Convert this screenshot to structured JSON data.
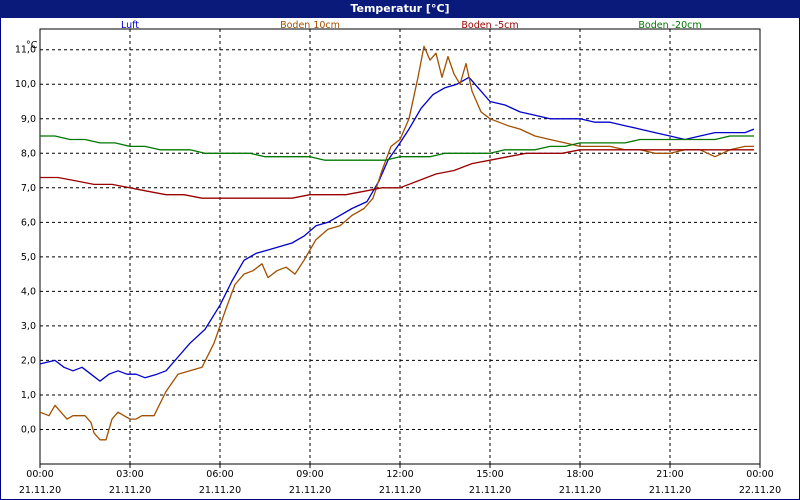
{
  "window": {
    "title": "Temperatur [°C]"
  },
  "colors": {
    "titlebar": "#0a1a7a",
    "grid": "#000000"
  },
  "chart_data": {
    "type": "line",
    "title": "Temperatur [°C]",
    "ylabel": "°C",
    "ylim": [
      -1.0,
      11.6
    ],
    "xlim": [
      0,
      24
    ],
    "grid": true,
    "legend": "top",
    "yticks": [
      0,
      1,
      2,
      3,
      4,
      5,
      6,
      7,
      8,
      9,
      10,
      11
    ],
    "yticklabels": [
      "0,0",
      "1,0",
      "2,0",
      "3,0",
      "4,0",
      "5,0",
      "6,0",
      "7,0",
      "8,0",
      "9,0",
      "10,0",
      "11,0"
    ],
    "xticks": [
      0,
      3,
      6,
      9,
      12,
      15,
      18,
      21,
      24
    ],
    "xticklabels_time": [
      "00:00",
      "03:00",
      "06:00",
      "09:00",
      "12:00",
      "15:00",
      "18:00",
      "21:00",
      "00:00"
    ],
    "xticklabels_date": [
      "21.11.20",
      "21.11.20",
      "21.11.20",
      "21.11.20",
      "21.11.20",
      "21.11.20",
      "21.11.20",
      "21.11.20",
      "22.11.20"
    ],
    "series": [
      {
        "name": "Luft",
        "color": "#0000cc",
        "points": [
          [
            0,
            1.9
          ],
          [
            0.5,
            2.0
          ],
          [
            0.8,
            1.8
          ],
          [
            1.1,
            1.7
          ],
          [
            1.4,
            1.8
          ],
          [
            1.7,
            1.6
          ],
          [
            2.0,
            1.4
          ],
          [
            2.3,
            1.6
          ],
          [
            2.6,
            1.7
          ],
          [
            2.9,
            1.6
          ],
          [
            3.2,
            1.6
          ],
          [
            3.5,
            1.5
          ],
          [
            3.9,
            1.6
          ],
          [
            4.2,
            1.7
          ],
          [
            4.6,
            2.1
          ],
          [
            5.0,
            2.5
          ],
          [
            5.5,
            2.9
          ],
          [
            6.0,
            3.6
          ],
          [
            6.4,
            4.3
          ],
          [
            6.8,
            4.9
          ],
          [
            7.2,
            5.1
          ],
          [
            7.6,
            5.2
          ],
          [
            8.0,
            5.3
          ],
          [
            8.4,
            5.4
          ],
          [
            8.8,
            5.6
          ],
          [
            9.2,
            5.9
          ],
          [
            9.6,
            6.0
          ],
          [
            10.0,
            6.2
          ],
          [
            10.4,
            6.4
          ],
          [
            10.9,
            6.6
          ],
          [
            11.3,
            7.2
          ],
          [
            11.6,
            7.8
          ],
          [
            12.0,
            8.3
          ],
          [
            12.3,
            8.7
          ],
          [
            12.7,
            9.3
          ],
          [
            13.1,
            9.7
          ],
          [
            13.5,
            9.9
          ],
          [
            13.9,
            10.0
          ],
          [
            14.3,
            10.2
          ],
          [
            14.6,
            9.9
          ],
          [
            15.0,
            9.5
          ],
          [
            15.5,
            9.4
          ],
          [
            16.0,
            9.2
          ],
          [
            16.5,
            9.1
          ],
          [
            17.0,
            9.0
          ],
          [
            17.5,
            9.0
          ],
          [
            18.0,
            9.0
          ],
          [
            18.5,
            8.9
          ],
          [
            19.0,
            8.9
          ],
          [
            19.5,
            8.8
          ],
          [
            20.0,
            8.7
          ],
          [
            20.5,
            8.6
          ],
          [
            21.0,
            8.5
          ],
          [
            21.5,
            8.4
          ],
          [
            22.0,
            8.5
          ],
          [
            22.5,
            8.6
          ],
          [
            23.0,
            8.6
          ],
          [
            23.5,
            8.6
          ],
          [
            23.8,
            8.7
          ]
        ]
      },
      {
        "name": "Boden 10cm",
        "color": "#a05000",
        "points": [
          [
            0,
            0.5
          ],
          [
            0.3,
            0.4
          ],
          [
            0.5,
            0.7
          ],
          [
            0.7,
            0.5
          ],
          [
            0.9,
            0.3
          ],
          [
            1.1,
            0.4
          ],
          [
            1.5,
            0.4
          ],
          [
            1.7,
            0.2
          ],
          [
            1.8,
            -0.1
          ],
          [
            2.0,
            -0.3
          ],
          [
            2.2,
            -0.3
          ],
          [
            2.4,
            0.3
          ],
          [
            2.6,
            0.5
          ],
          [
            2.8,
            0.4
          ],
          [
            3.0,
            0.3
          ],
          [
            3.2,
            0.3
          ],
          [
            3.4,
            0.4
          ],
          [
            3.8,
            0.4
          ],
          [
            4.2,
            1.1
          ],
          [
            4.6,
            1.6
          ],
          [
            5.0,
            1.7
          ],
          [
            5.4,
            1.8
          ],
          [
            5.8,
            2.5
          ],
          [
            6.2,
            3.5
          ],
          [
            6.5,
            4.2
          ],
          [
            6.8,
            4.5
          ],
          [
            7.1,
            4.6
          ],
          [
            7.4,
            4.8
          ],
          [
            7.6,
            4.4
          ],
          [
            7.9,
            4.6
          ],
          [
            8.2,
            4.7
          ],
          [
            8.5,
            4.5
          ],
          [
            8.8,
            4.9
          ],
          [
            9.2,
            5.5
          ],
          [
            9.6,
            5.8
          ],
          [
            10.0,
            5.9
          ],
          [
            10.4,
            6.2
          ],
          [
            10.8,
            6.4
          ],
          [
            11.1,
            6.7
          ],
          [
            11.4,
            7.5
          ],
          [
            11.7,
            8.2
          ],
          [
            12.0,
            8.4
          ],
          [
            12.3,
            9.0
          ],
          [
            12.6,
            10.2
          ],
          [
            12.8,
            11.1
          ],
          [
            13.0,
            10.7
          ],
          [
            13.2,
            10.9
          ],
          [
            13.4,
            10.2
          ],
          [
            13.6,
            10.8
          ],
          [
            13.8,
            10.3
          ],
          [
            14.0,
            10.0
          ],
          [
            14.2,
            10.6
          ],
          [
            14.4,
            9.8
          ],
          [
            14.7,
            9.2
          ],
          [
            15.0,
            9.0
          ],
          [
            15.3,
            8.9
          ],
          [
            15.6,
            8.8
          ],
          [
            16.0,
            8.7
          ],
          [
            16.5,
            8.5
          ],
          [
            17.0,
            8.4
          ],
          [
            17.5,
            8.3
          ],
          [
            18.0,
            8.2
          ],
          [
            18.5,
            8.2
          ],
          [
            19.0,
            8.2
          ],
          [
            19.5,
            8.1
          ],
          [
            20.0,
            8.1
          ],
          [
            20.5,
            8.0
          ],
          [
            21.0,
            8.0
          ],
          [
            21.5,
            8.1
          ],
          [
            22.0,
            8.1
          ],
          [
            22.5,
            7.9
          ],
          [
            23.0,
            8.1
          ],
          [
            23.5,
            8.2
          ],
          [
            23.8,
            8.2
          ]
        ]
      },
      {
        "name": "Boden -5cm",
        "color": "#990000",
        "points": [
          [
            0,
            7.3
          ],
          [
            0.6,
            7.3
          ],
          [
            1.2,
            7.2
          ],
          [
            1.8,
            7.1
          ],
          [
            2.4,
            7.1
          ],
          [
            3.0,
            7.0
          ],
          [
            3.6,
            6.9
          ],
          [
            4.2,
            6.8
          ],
          [
            4.8,
            6.8
          ],
          [
            5.4,
            6.7
          ],
          [
            6.0,
            6.7
          ],
          [
            6.6,
            6.7
          ],
          [
            7.2,
            6.7
          ],
          [
            7.8,
            6.7
          ],
          [
            8.4,
            6.7
          ],
          [
            9.0,
            6.8
          ],
          [
            9.6,
            6.8
          ],
          [
            10.2,
            6.8
          ],
          [
            10.8,
            6.9
          ],
          [
            11.4,
            7.0
          ],
          [
            12.0,
            7.0
          ],
          [
            12.6,
            7.2
          ],
          [
            13.2,
            7.4
          ],
          [
            13.8,
            7.5
          ],
          [
            14.4,
            7.7
          ],
          [
            15.0,
            7.8
          ],
          [
            15.6,
            7.9
          ],
          [
            16.2,
            8.0
          ],
          [
            16.8,
            8.0
          ],
          [
            17.4,
            8.0
          ],
          [
            18.0,
            8.1
          ],
          [
            18.6,
            8.1
          ],
          [
            19.2,
            8.1
          ],
          [
            19.8,
            8.1
          ],
          [
            20.4,
            8.1
          ],
          [
            21.0,
            8.1
          ],
          [
            21.6,
            8.1
          ],
          [
            22.2,
            8.1
          ],
          [
            22.8,
            8.1
          ],
          [
            23.4,
            8.1
          ],
          [
            23.8,
            8.1
          ]
        ]
      },
      {
        "name": "Boden -20cm",
        "color": "#007700",
        "points": [
          [
            0,
            8.5
          ],
          [
            0.5,
            8.5
          ],
          [
            1.0,
            8.4
          ],
          [
            1.5,
            8.4
          ],
          [
            2.0,
            8.3
          ],
          [
            2.5,
            8.3
          ],
          [
            3.0,
            8.2
          ],
          [
            3.5,
            8.2
          ],
          [
            4.0,
            8.1
          ],
          [
            4.5,
            8.1
          ],
          [
            5.0,
            8.1
          ],
          [
            5.5,
            8.0
          ],
          [
            6.0,
            8.0
          ],
          [
            6.5,
            8.0
          ],
          [
            7.0,
            8.0
          ],
          [
            7.5,
            7.9
          ],
          [
            8.0,
            7.9
          ],
          [
            8.5,
            7.9
          ],
          [
            9.0,
            7.9
          ],
          [
            9.5,
            7.8
          ],
          [
            10.0,
            7.8
          ],
          [
            10.5,
            7.8
          ],
          [
            11.0,
            7.8
          ],
          [
            11.5,
            7.8
          ],
          [
            12.0,
            7.9
          ],
          [
            12.5,
            7.9
          ],
          [
            13.0,
            7.9
          ],
          [
            13.5,
            8.0
          ],
          [
            14.0,
            8.0
          ],
          [
            14.5,
            8.0
          ],
          [
            15.0,
            8.0
          ],
          [
            15.5,
            8.1
          ],
          [
            16.0,
            8.1
          ],
          [
            16.5,
            8.1
          ],
          [
            17.0,
            8.2
          ],
          [
            17.5,
            8.2
          ],
          [
            18.0,
            8.3
          ],
          [
            18.5,
            8.3
          ],
          [
            19.0,
            8.3
          ],
          [
            19.5,
            8.3
          ],
          [
            20.0,
            8.4
          ],
          [
            20.5,
            8.4
          ],
          [
            21.0,
            8.4
          ],
          [
            21.5,
            8.4
          ],
          [
            22.0,
            8.4
          ],
          [
            22.5,
            8.4
          ],
          [
            23.0,
            8.5
          ],
          [
            23.5,
            8.5
          ],
          [
            23.8,
            8.5
          ]
        ]
      }
    ]
  }
}
